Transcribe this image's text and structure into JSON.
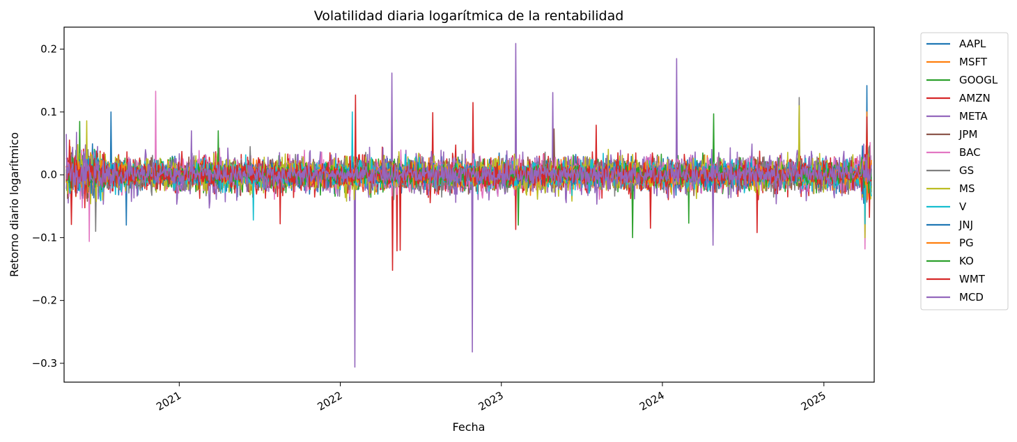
{
  "chart_data": {
    "type": "line",
    "title": "Volatilidad diaria logarítmica de la rentabilidad",
    "xlabel": "Fecha",
    "ylabel": "Retorno diario logarítmico",
    "x_range": [
      "2020-04-15",
      "2025-04-25"
    ],
    "ylim": [
      -0.33,
      0.235
    ],
    "x_ticks": [
      {
        "date": "2021-01-01",
        "label": "2021"
      },
      {
        "date": "2022-01-01",
        "label": "2022"
      },
      {
        "date": "2023-01-01",
        "label": "2023"
      },
      {
        "date": "2024-01-01",
        "label": "2024"
      },
      {
        "date": "2025-01-01",
        "label": "2025"
      }
    ],
    "y_ticks": [
      {
        "value": 0.2,
        "label": "0.2"
      },
      {
        "value": 0.1,
        "label": "0.1"
      },
      {
        "value": 0.0,
        "label": "0.0"
      },
      {
        "value": -0.1,
        "label": "−0.1"
      },
      {
        "value": -0.2,
        "label": "−0.2"
      },
      {
        "value": -0.3,
        "label": "−0.3"
      }
    ],
    "grid": false,
    "legend_position": "outside-right",
    "series": [
      {
        "name": "AAPL",
        "color": "#1f77b4",
        "typical_abs": 0.018,
        "spikes": [
          {
            "date": "2020-07-31",
            "value": 0.1
          },
          {
            "date": "2020-09-03",
            "value": -0.08
          },
          {
            "date": "2025-04-09",
            "value": 0.142
          },
          {
            "date": "2025-04-04",
            "value": -0.08
          }
        ]
      },
      {
        "name": "MSFT",
        "color": "#ff7f0e",
        "typical_abs": 0.016,
        "spikes": [
          {
            "date": "2020-04-29",
            "value": 0.045
          },
          {
            "date": "2025-04-09",
            "value": 0.1
          }
        ]
      },
      {
        "name": "GOOGL",
        "color": "#2ca02c",
        "typical_abs": 0.018,
        "spikes": [
          {
            "date": "2020-05-20",
            "value": 0.085
          },
          {
            "date": "2023-02-08",
            "value": -0.08
          },
          {
            "date": "2023-10-25",
            "value": -0.1
          },
          {
            "date": "2024-04-26",
            "value": 0.097
          },
          {
            "date": "2024-03-01",
            "value": -0.077
          }
        ]
      },
      {
        "name": "AMZN",
        "color": "#d62728",
        "typical_abs": 0.021,
        "spikes": [
          {
            "date": "2020-05-01",
            "value": -0.079
          },
          {
            "date": "2022-02-04",
            "value": 0.127
          },
          {
            "date": "2022-04-29",
            "value": -0.152
          },
          {
            "date": "2022-05-10",
            "value": -0.121
          },
          {
            "date": "2022-07-29",
            "value": 0.099
          },
          {
            "date": "2022-10-28",
            "value": 0.115
          },
          {
            "date": "2023-02-03",
            "value": -0.087
          },
          {
            "date": "2023-08-04",
            "value": 0.079
          },
          {
            "date": "2023-12-05",
            "value": -0.085
          },
          {
            "date": "2024-08-02",
            "value": -0.092
          }
        ]
      },
      {
        "name": "META",
        "color": "#9467bd",
        "typical_abs": 0.025,
        "spikes": [
          {
            "date": "2022-02-03",
            "value": -0.306
          },
          {
            "date": "2022-04-28",
            "value": 0.162
          },
          {
            "date": "2022-10-27",
            "value": -0.282
          },
          {
            "date": "2023-02-02",
            "value": 0.209
          },
          {
            "date": "2023-04-27",
            "value": 0.131
          },
          {
            "date": "2024-02-02",
            "value": 0.185
          },
          {
            "date": "2024-04-25",
            "value": -0.112
          }
        ]
      },
      {
        "name": "JPM",
        "color": "#8c564b",
        "typical_abs": 0.016,
        "spikes": [
          {
            "date": "2023-05-01",
            "value": 0.073
          }
        ]
      },
      {
        "name": "BAC",
        "color": "#e377c2",
        "typical_abs": 0.02,
        "spikes": [
          {
            "date": "2020-06-11",
            "value": -0.106
          },
          {
            "date": "2020-11-09",
            "value": 0.133
          },
          {
            "date": "2025-04-04",
            "value": -0.118
          }
        ]
      },
      {
        "name": "GS",
        "color": "#7f7f7f",
        "typical_abs": 0.019,
        "spikes": [
          {
            "date": "2020-06-26",
            "value": -0.09
          },
          {
            "date": "2024-11-06",
            "value": 0.123
          }
        ]
      },
      {
        "name": "MS",
        "color": "#bcbd22",
        "typical_abs": 0.02,
        "spikes": [
          {
            "date": "2020-06-05",
            "value": 0.086
          },
          {
            "date": "2024-11-06",
            "value": 0.11
          },
          {
            "date": "2025-04-04",
            "value": -0.1
          }
        ]
      },
      {
        "name": "V",
        "color": "#17becf",
        "typical_abs": 0.016,
        "spikes": [
          {
            "date": "2022-01-28",
            "value": 0.1
          },
          {
            "date": "2021-06-18",
            "value": -0.072
          },
          {
            "date": "2025-04-04",
            "value": -0.078
          }
        ]
      },
      {
        "name": "JNJ",
        "color": "#1f77b4",
        "typical_abs": 0.011,
        "spikes": []
      },
      {
        "name": "PG",
        "color": "#ff7f0e",
        "typical_abs": 0.011,
        "spikes": []
      },
      {
        "name": "KO",
        "color": "#2ca02c",
        "typical_abs": 0.011,
        "spikes": [
          {
            "date": "2021-03-31",
            "value": 0.07
          }
        ]
      },
      {
        "name": "WMT",
        "color": "#d62728",
        "typical_abs": 0.013,
        "spikes": [
          {
            "date": "2021-08-17",
            "value": -0.078
          },
          {
            "date": "2022-05-17",
            "value": -0.12
          },
          {
            "date": "2025-04-09",
            "value": 0.092
          }
        ]
      },
      {
        "name": "MCD",
        "color": "#9467bd",
        "typical_abs": 0.013,
        "spikes": [
          {
            "date": "2020-04-20",
            "value": 0.065
          },
          {
            "date": "2021-01-28",
            "value": 0.07
          }
        ]
      }
    ]
  }
}
